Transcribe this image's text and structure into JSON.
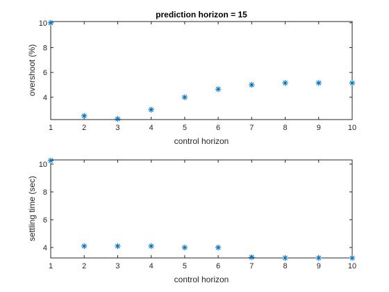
{
  "chart_data": [
    {
      "type": "scatter",
      "title": "prediction horizon = 15",
      "xlabel": "control horizon",
      "ylabel": "overshoot (%)",
      "xlim": [
        1,
        10
      ],
      "ylim": [
        2.2,
        10.1
      ],
      "xticks": [
        "1",
        "2",
        "3",
        "4",
        "5",
        "6",
        "7",
        "8",
        "9",
        "10"
      ],
      "yticks": [
        "4",
        "6",
        "8",
        "10"
      ],
      "grid": false,
      "marker": "asterisk",
      "color": "#0072BD",
      "x": [
        1,
        2,
        3,
        4,
        5,
        6,
        7,
        8,
        9,
        10
      ],
      "y": [
        10.0,
        2.5,
        2.25,
        3.0,
        4.0,
        4.65,
        5.0,
        5.15,
        5.15,
        5.15
      ]
    },
    {
      "type": "scatter",
      "title": "",
      "xlabel": "control horizon",
      "ylabel": "settling time (sec)",
      "xlim": [
        1,
        10
      ],
      "ylim": [
        3.25,
        10.3
      ],
      "xticks": [
        "1",
        "2",
        "3",
        "4",
        "5",
        "6",
        "7",
        "8",
        "9",
        "10"
      ],
      "yticks": [
        "4",
        "6",
        "8",
        "10"
      ],
      "grid": false,
      "marker": "asterisk",
      "color": "#0072BD",
      "x": [
        1,
        2,
        3,
        4,
        5,
        6,
        7,
        8,
        9,
        10
      ],
      "y": [
        10.25,
        4.1,
        4.1,
        4.1,
        4.0,
        4.0,
        3.3,
        3.25,
        3.25,
        3.25
      ]
    }
  ]
}
